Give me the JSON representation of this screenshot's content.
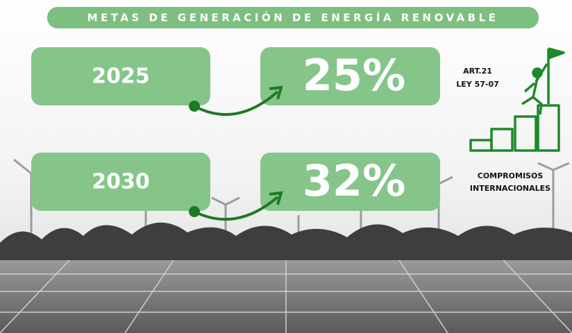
{
  "title": "METAS DE GENERACIÓN DE ENERGÍA RENOVABLE",
  "goals": [
    {
      "year": "2025",
      "target": "25%"
    },
    {
      "year": "2030",
      "target": "32%"
    }
  ],
  "notes": {
    "law": [
      "ART.21",
      "LEY 57-07"
    ],
    "commitments": [
      "COMPROMISOS",
      "INTERNACIONALES"
    ]
  }
}
